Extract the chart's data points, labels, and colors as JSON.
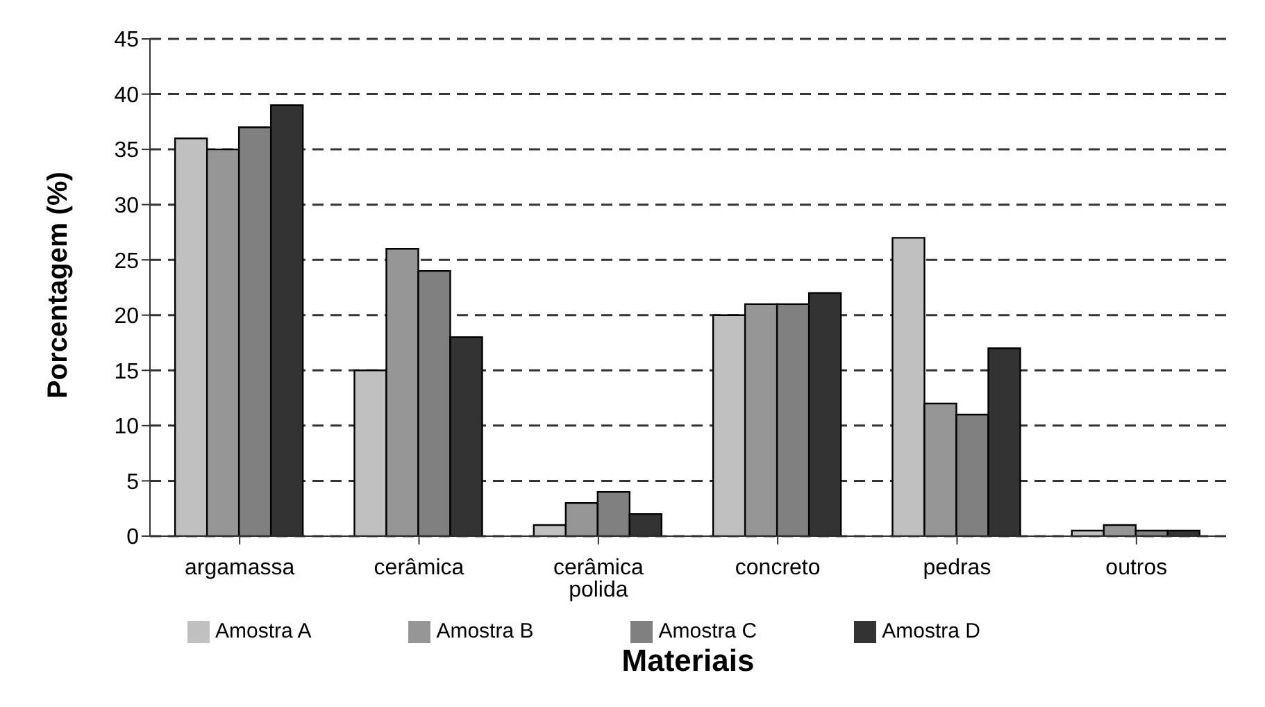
{
  "chart_data": {
    "type": "bar",
    "xlabel": "Materiais",
    "ylabel": "Porcentagem (%)",
    "categories": [
      "argamassa",
      "cerâmica",
      "cerâmica polida",
      "concreto",
      "pedras",
      "outros"
    ],
    "series": [
      {
        "name": "Amostra A",
        "color": "#c0c0c0",
        "values": [
          36,
          15,
          1,
          20,
          27,
          0.5
        ]
      },
      {
        "name": "Amostra B",
        "color": "#969696",
        "values": [
          35,
          26,
          3,
          21,
          12,
          1
        ]
      },
      {
        "name": "Amostra C",
        "color": "#808080",
        "values": [
          37,
          24,
          4,
          21,
          11,
          0.5
        ]
      },
      {
        "name": "Amostra D",
        "color": "#333333",
        "values": [
          39,
          18,
          2,
          22,
          17,
          0.5
        ]
      }
    ],
    "ylim": [
      0,
      45
    ],
    "yticks": [
      0,
      5,
      10,
      15,
      20,
      25,
      30,
      35,
      40,
      45
    ],
    "grid": "y",
    "legend": "bottom"
  }
}
